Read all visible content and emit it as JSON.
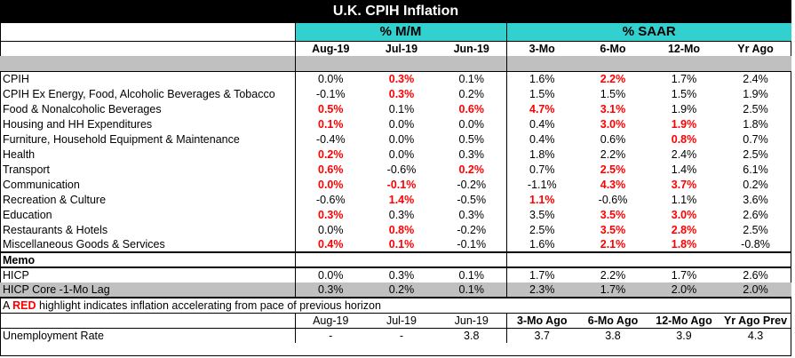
{
  "title": "U.K. CPIH Inflation",
  "group_headers": {
    "mm": "% M/M",
    "saar": "% SAAR"
  },
  "columns": [
    "Aug-19",
    "Jul-19",
    "Jun-19",
    "3-Mo",
    "6-Mo",
    "12-Mo",
    "Yr Ago"
  ],
  "rows": [
    {
      "label": "CPIH",
      "values": [
        "0.0%",
        "0.3%",
        "0.1%",
        "1.6%",
        "2.2%",
        "1.7%",
        "2.4%"
      ],
      "red": [
        false,
        true,
        false,
        false,
        true,
        false,
        false
      ]
    },
    {
      "label": " CPIH Ex Energy, Food, Alcoholic Beverages & Tobacco",
      "values": [
        "-0.1%",
        "0.3%",
        "0.2%",
        "1.5%",
        "1.5%",
        "1.5%",
        "1.9%"
      ],
      "red": [
        false,
        true,
        false,
        false,
        false,
        false,
        false
      ]
    },
    {
      "label": "Food & Nonalcoholic Beverages",
      "values": [
        "0.5%",
        "0.1%",
        "0.6%",
        "4.7%",
        "3.1%",
        "1.9%",
        "2.5%"
      ],
      "red": [
        true,
        false,
        true,
        true,
        true,
        false,
        false
      ]
    },
    {
      "label": "Housing and HH Expenditures",
      "values": [
        "0.1%",
        "0.0%",
        "0.0%",
        "0.4%",
        "3.0%",
        "1.9%",
        "1.8%"
      ],
      "red": [
        true,
        false,
        false,
        false,
        true,
        true,
        false
      ]
    },
    {
      "label": "Furniture, Household Equipment & Maintenance",
      "values": [
        "-0.4%",
        "0.0%",
        "0.5%",
        "0.4%",
        "0.6%",
        "0.8%",
        "0.7%"
      ],
      "red": [
        false,
        false,
        false,
        false,
        false,
        true,
        false
      ]
    },
    {
      "label": "Health",
      "values": [
        "0.2%",
        "0.0%",
        "0.3%",
        "1.8%",
        "2.2%",
        "2.4%",
        "2.5%"
      ],
      "red": [
        true,
        false,
        false,
        false,
        false,
        false,
        false
      ]
    },
    {
      "label": "Transport",
      "values": [
        "0.6%",
        "-0.6%",
        "0.2%",
        "0.7%",
        "2.5%",
        "1.4%",
        "6.1%"
      ],
      "red": [
        true,
        false,
        true,
        false,
        true,
        false,
        false
      ]
    },
    {
      "label": "Communication",
      "values": [
        "0.0%",
        "-0.1%",
        "-0.2%",
        "-1.1%",
        "4.3%",
        "3.7%",
        "0.2%"
      ],
      "red": [
        true,
        true,
        false,
        false,
        true,
        true,
        false
      ]
    },
    {
      "label": "Recreation & Culture",
      "values": [
        "-0.6%",
        "1.4%",
        "-0.5%",
        "1.1%",
        "-0.6%",
        "1.1%",
        "3.6%"
      ],
      "red": [
        false,
        true,
        false,
        true,
        false,
        false,
        false
      ]
    },
    {
      "label": "Education",
      "values": [
        "0.3%",
        "0.3%",
        "0.3%",
        "3.5%",
        "3.5%",
        "3.0%",
        "2.6%"
      ],
      "red": [
        true,
        false,
        false,
        false,
        true,
        true,
        false
      ]
    },
    {
      "label": "Restaurants & Hotels",
      "values": [
        "0.0%",
        "0.8%",
        "-0.2%",
        "2.5%",
        "3.5%",
        "2.8%",
        "2.5%"
      ],
      "red": [
        false,
        true,
        false,
        false,
        true,
        true,
        false
      ]
    },
    {
      "label": "Miscellaneous Goods & Services",
      "values": [
        "0.4%",
        "0.1%",
        "-0.1%",
        "1.6%",
        "2.1%",
        "1.8%",
        "-0.8%"
      ],
      "red": [
        true,
        true,
        false,
        false,
        true,
        true,
        false
      ]
    }
  ],
  "memo_label": "Memo",
  "memo_rows": [
    {
      "label": "HICP",
      "values": [
        "0.0%",
        "0.3%",
        "0.1%",
        "1.7%",
        "2.2%",
        "1.7%",
        "2.6%"
      ]
    },
    {
      "label": "   HICP Core -1-Mo Lag",
      "values": [
        "0.3%",
        "0.2%",
        "0.1%",
        "2.3%",
        "1.7%",
        "2.0%",
        "2.0%"
      ]
    }
  ],
  "note": {
    "prefix": "A ",
    "highlight": "RED",
    "suffix": " highlight indicates inflation accelerating from pace of previous horizon"
  },
  "unemp_columns": [
    "Aug-19",
    "Jul-19",
    "Jun-19",
    "3-Mo Ago",
    "6-Mo Ago",
    "12-Mo Ago",
    "Yr Ago Prev"
  ],
  "unemp_row": {
    "label": "Unemployment Rate",
    "values": [
      "-",
      "-",
      "3.8",
      "3.7",
      "3.8",
      "3.9",
      "4.3"
    ]
  },
  "colors": {
    "accent": "#33d0d0",
    "highlight": "#ff0000",
    "gray": "#c0c0c0"
  }
}
